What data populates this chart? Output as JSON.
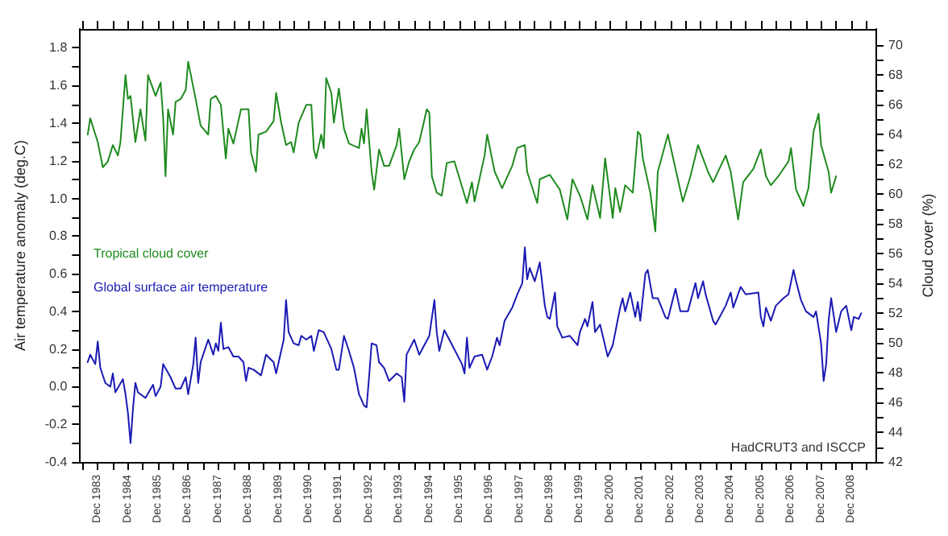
{
  "chart_data": {
    "type": "line",
    "ylabel": "Air temperature anomaly (deg.C)",
    "y2label": "Cloud cover (%)",
    "annotations": [
      "HadCRUT3 and ISCCP"
    ],
    "legend": "left",
    "marker": "none",
    "xlim": [
      "1983-05",
      "2009-09-20"
    ],
    "xticks": [
      {
        "value": "1983-06",
        "label": null
      },
      {
        "value": "1983-12",
        "label": "Dec 1983"
      },
      {
        "value": "1984-06",
        "label": null
      },
      {
        "value": "1984-12",
        "label": "Dec 1984"
      },
      {
        "value": "1985-06",
        "label": null
      },
      {
        "value": "1985-12",
        "label": "Dec 1985"
      },
      {
        "value": "1986-06",
        "label": null
      },
      {
        "value": "1986-12",
        "label": "Dec 1986"
      },
      {
        "value": "1987-06",
        "label": null
      },
      {
        "value": "1987-12",
        "label": "Dec 1987"
      },
      {
        "value": "1988-06",
        "label": null
      },
      {
        "value": "1988-12",
        "label": "Dec 1988"
      },
      {
        "value": "1989-06",
        "label": null
      },
      {
        "value": "1989-12",
        "label": "Dec 1989"
      },
      {
        "value": "1990-06",
        "label": null
      },
      {
        "value": "1990-12",
        "label": "Dec 1990"
      },
      {
        "value": "1991-06",
        "label": null
      },
      {
        "value": "1991-12",
        "label": "Dec 1991"
      },
      {
        "value": "1992-06",
        "label": null
      },
      {
        "value": "1992-12",
        "label": "Dec 1992"
      },
      {
        "value": "1993-06",
        "label": null
      },
      {
        "value": "1993-12",
        "label": "Dec 1993"
      },
      {
        "value": "1994-06",
        "label": null
      },
      {
        "value": "1994-12",
        "label": "Dec 1994"
      },
      {
        "value": "1995-06",
        "label": null
      },
      {
        "value": "1995-12",
        "label": "Dec 1995"
      },
      {
        "value": "1996-06",
        "label": null
      },
      {
        "value": "1996-12",
        "label": "Dec 1996"
      },
      {
        "value": "1997-06",
        "label": null
      },
      {
        "value": "1997-12",
        "label": "Dec 1997"
      },
      {
        "value": "1998-06",
        "label": null
      },
      {
        "value": "1998-12",
        "label": "Dec 1998"
      },
      {
        "value": "1999-06",
        "label": null
      },
      {
        "value": "1999-12",
        "label": "Dec 1999"
      },
      {
        "value": "2000-06",
        "label": null
      },
      {
        "value": "2000-12",
        "label": "Dec 2000"
      },
      {
        "value": "2001-06",
        "label": null
      },
      {
        "value": "2001-12",
        "label": "Dec 2001"
      },
      {
        "value": "2002-06",
        "label": null
      },
      {
        "value": "2002-12",
        "label": "Dec 2002"
      },
      {
        "value": "2003-06",
        "label": null
      },
      {
        "value": "2003-12",
        "label": "Dec 2003"
      },
      {
        "value": "2004-06",
        "label": null
      },
      {
        "value": "2004-12",
        "label": "Dec 2004"
      },
      {
        "value": "2005-06",
        "label": null
      },
      {
        "value": "2005-12",
        "label": "Dec 2005"
      },
      {
        "value": "2006-06",
        "label": null
      },
      {
        "value": "2006-12",
        "label": "Dec 2006"
      },
      {
        "value": "2007-06",
        "label": null
      },
      {
        "value": "2007-12",
        "label": "Dec 2007"
      },
      {
        "value": "2008-06",
        "label": null
      },
      {
        "value": "2008-12",
        "label": "Dec 2008"
      },
      {
        "value": "2009-06",
        "label": null
      }
    ],
    "ylim": [
      -0.4,
      1.9
    ],
    "yticks": [
      -0.4,
      {
        "value": -0.3,
        "label": null
      },
      -0.2,
      {
        "value": -0.1,
        "label": null
      },
      {
        "value": 0,
        "label": "0.0"
      },
      {
        "value": 0.1,
        "label": null
      },
      0.2,
      {
        "value": 0.3,
        "label": null
      },
      0.4,
      {
        "value": 0.5,
        "label": null
      },
      0.6,
      {
        "value": 0.7,
        "label": null
      },
      0.8,
      {
        "value": 0.9,
        "label": null
      },
      {
        "value": 1,
        "label": "1.0"
      },
      {
        "value": 1.1,
        "label": null
      },
      1.2,
      {
        "value": 1.3,
        "label": null
      },
      1.4,
      {
        "value": 1.5,
        "label": null
      },
      1.6,
      {
        "value": 1.7,
        "label": null
      },
      1.8
    ],
    "y2lim": [
      42,
      71.1
    ],
    "y2ticks": [
      42,
      {
        "value": 43,
        "label": null
      },
      44,
      {
        "value": 45,
        "label": null
      },
      46,
      {
        "value": 47,
        "label": null
      },
      48,
      {
        "value": 49,
        "label": null
      },
      50,
      {
        "value": 51,
        "label": null
      },
      52,
      {
        "value": 53,
        "label": null
      },
      54,
      {
        "value": 55,
        "label": null
      },
      56,
      {
        "value": 57,
        "label": null
      },
      58,
      {
        "value": 59,
        "label": null
      },
      60,
      {
        "value": 61,
        "label": null
      },
      62,
      {
        "value": 63,
        "label": null
      },
      64,
      {
        "value": 65,
        "label": null
      },
      66,
      {
        "value": 67,
        "label": null
      },
      68,
      {
        "value": 69,
        "label": null
      },
      70
    ],
    "series": [
      {
        "name": "Tropical cloud cover",
        "color": "#1e8a1e",
        "axis": "y2",
        "x": [
          "1983-08",
          "1983-09",
          "1983-12",
          "1984-02",
          "1984-04",
          "1984-06",
          "1984-08",
          "1984-09",
          "1984-11",
          "1984-12",
          "1985-01",
          "1985-03",
          "1985-05",
          "1985-07",
          "1985-08",
          "1985-11",
          "1986-01",
          "1986-02",
          "1986-03",
          "1986-04",
          "1986-06",
          "1986-07",
          "1986-09",
          "1986-11",
          "1986-12",
          "1987-03",
          "1987-05",
          "1987-08",
          "1987-09",
          "1987-11",
          "1988-01",
          "1988-03",
          "1988-04",
          "1988-06",
          "1988-09",
          "1988-12",
          "1989-01",
          "1989-03",
          "1989-04",
          "1989-07",
          "1989-10",
          "1989-11",
          "1990-01",
          "1990-03",
          "1990-05",
          "1990-06",
          "1990-08",
          "1990-11",
          "1991-01",
          "1991-02",
          "1991-03",
          "1991-05",
          "1991-06",
          "1991-07",
          "1991-09",
          "1991-10",
          "1991-12",
          "1992-02",
          "1992-04",
          "1992-08",
          "1992-09",
          "1992-10",
          "1992-11",
          "1993-01",
          "1993-02",
          "1993-04",
          "1993-06",
          "1993-08",
          "1993-11",
          "1993-12",
          "1994-02",
          "1994-04",
          "1994-06",
          "1994-08",
          "1994-11",
          "1994-12",
          "1995-01",
          "1995-03",
          "1995-05",
          "1995-07",
          "1995-10",
          "1996-03",
          "1996-05",
          "1996-06",
          "1996-10",
          "1996-11",
          "1997-02",
          "1997-05",
          "1997-09",
          "1997-11",
          "1998-02",
          "1998-03",
          "1998-07",
          "1998-08",
          "1998-12",
          "1999-04",
          "1999-07",
          "1999-09",
          "1999-12",
          "2000-03",
          "2000-05",
          "2000-08",
          "2000-10",
          "2001-01",
          "2001-02",
          "2001-04",
          "2001-06",
          "2001-09",
          "2001-11",
          "2001-12",
          "2002-01",
          "2002-04",
          "2002-06",
          "2002-07",
          "2002-11",
          "2003-02",
          "2003-05",
          "2003-08",
          "2003-11",
          "2004-03",
          "2004-05",
          "2004-10",
          "2004-12",
          "2005-03",
          "2005-05",
          "2005-09",
          "2005-12",
          "2006-02",
          "2006-04",
          "2006-07",
          "2006-11",
          "2006-12",
          "2007-02",
          "2007-05",
          "2007-07",
          "2007-09",
          "2007-11",
          "2007-12",
          "2008-03",
          "2008-04",
          "2008-06"
        ],
        "values": [
          64.0,
          65.1,
          63.5,
          61.8,
          62.2,
          63.3,
          62.6,
          63.5,
          68.0,
          66.4,
          66.6,
          63.5,
          65.7,
          63.6,
          68.0,
          66.6,
          67.5,
          65.1,
          61.2,
          65.7,
          64.0,
          66.2,
          66.4,
          67.0,
          68.9,
          66.4,
          64.6,
          64.0,
          66.4,
          66.6,
          66.0,
          62.4,
          64.4,
          63.4,
          65.7,
          65.7,
          62.8,
          61.5,
          64.0,
          64.2,
          64.9,
          66.8,
          64.8,
          63.3,
          63.5,
          62.8,
          64.8,
          66.0,
          66.0,
          63.0,
          62.4,
          64.0,
          63.1,
          67.8,
          66.8,
          64.8,
          67.1,
          64.4,
          63.4,
          63.1,
          64.4,
          63.4,
          65.7,
          61.5,
          60.3,
          63.0,
          61.9,
          61.9,
          63.3,
          64.4,
          61.0,
          62.2,
          63.0,
          63.5,
          65.7,
          65.5,
          61.2,
          60.1,
          59.9,
          62.1,
          62.2,
          59.4,
          60.8,
          59.5,
          62.6,
          64.0,
          61.5,
          60.4,
          61.9,
          63.1,
          63.3,
          61.5,
          59.4,
          61.0,
          61.3,
          60.3,
          58.3,
          61.0,
          59.9,
          58.3,
          60.6,
          58.4,
          62.4,
          58.4,
          60.4,
          58.8,
          60.6,
          60.1,
          64.2,
          64.0,
          62.4,
          60.1,
          57.5,
          61.5,
          64.0,
          61.7,
          59.5,
          61.2,
          63.3,
          61.5,
          60.8,
          62.6,
          61.5,
          58.3,
          60.8,
          61.7,
          63.0,
          61.2,
          60.6,
          61.2,
          62.2,
          63.1,
          60.3,
          59.2,
          60.4,
          64.2,
          65.4,
          63.3,
          61.5,
          60.1,
          61.2
        ]
      },
      {
        "name": "Global surface air temperature",
        "color": "#1a1ab4",
        "x": [
          "1983-08",
          "1983-09",
          "1983-11",
          "1983-12",
          "1984-01",
          "1984-03",
          "1984-05",
          "1984-06",
          "1984-07",
          "1984-10",
          "1984-11",
          "1984-12",
          "1985-01",
          "1985-02",
          "1985-03",
          "1985-04",
          "1985-07",
          "1985-10",
          "1985-11",
          "1986-01",
          "1986-02",
          "1986-05",
          "1986-07",
          "1986-09",
          "1986-11",
          "1986-12",
          "1987-02",
          "1987-03",
          "1987-04",
          "1987-05",
          "1987-08",
          "1987-10",
          "1987-11",
          "1987-12",
          "1988-01",
          "1988-02",
          "1988-04",
          "1988-06",
          "1988-08",
          "1988-10",
          "1988-11",
          "1988-12",
          "1989-02",
          "1989-05",
          "1989-07",
          "1989-10",
          "1989-11",
          "1990-01",
          "1990-02",
          "1990-03",
          "1990-04",
          "1990-06",
          "1990-08",
          "1990-09",
          "1990-11",
          "1991-01",
          "1991-02",
          "1991-04",
          "1991-06",
          "1991-09",
          "1991-11",
          "1991-12",
          "1992-02",
          "1992-04",
          "1992-06",
          "1992-08",
          "1992-10",
          "1992-11",
          "1992-12",
          "1993-01",
          "1993-03",
          "1993-04",
          "1993-06",
          "1993-08",
          "1993-11",
          "1994-01",
          "1994-02",
          "1994-03",
          "1994-06",
          "1994-08",
          "1994-10",
          "1994-12",
          "1995-02",
          "1995-03",
          "1995-04",
          "1995-06",
          "1995-08",
          "1996-01",
          "1996-02",
          "1996-03",
          "1996-04",
          "1996-06",
          "1996-09",
          "1996-11",
          "1997-01",
          "1997-03",
          "1997-04",
          "1997-06",
          "1997-09",
          "1997-11",
          "1998-01",
          "1998-02",
          "1998-03",
          "1998-04",
          "1998-06",
          "1998-08",
          "1998-10",
          "1998-11",
          "1998-12",
          "1999-02",
          "1999-03",
          "1999-05",
          "1999-08",
          "1999-11",
          "1999-12",
          "2000-02",
          "2000-03",
          "2000-05",
          "2000-06",
          "2000-08",
          "2000-11",
          "2001-01",
          "2001-04",
          "2001-05",
          "2001-06",
          "2001-08",
          "2001-10",
          "2001-11",
          "2001-12",
          "2002-02",
          "2002-03",
          "2002-05",
          "2002-07",
          "2002-10",
          "2002-11",
          "2003-02",
          "2003-04",
          "2003-07",
          "2003-10",
          "2003-11",
          "2004-01",
          "2004-02",
          "2004-05",
          "2004-06",
          "2004-10",
          "2004-12",
          "2005-01",
          "2005-04",
          "2005-06",
          "2005-11",
          "2005-12",
          "2006-01",
          "2006-02",
          "2006-04",
          "2006-06",
          "2006-09",
          "2006-11",
          "2007-01",
          "2007-02",
          "2007-04",
          "2007-06",
          "2007-09",
          "2007-10",
          "2007-12",
          "2008-01",
          "2008-02",
          "2008-03",
          "2008-04",
          "2008-06",
          "2008-08",
          "2008-10",
          "2008-12",
          "2009-01",
          "2009-03",
          "2009-04"
        ],
        "values": [
          0.13,
          0.17,
          0.12,
          0.24,
          0.1,
          0.02,
          0.0,
          0.07,
          -0.03,
          0.04,
          -0.04,
          -0.14,
          -0.3,
          -0.11,
          0.02,
          -0.03,
          -0.06,
          0.01,
          -0.05,
          0.0,
          0.12,
          0.05,
          -0.01,
          -0.01,
          0.05,
          -0.04,
          0.12,
          0.26,
          0.02,
          0.13,
          0.25,
          0.17,
          0.23,
          0.19,
          0.34,
          0.2,
          0.21,
          0.16,
          0.16,
          0.13,
          0.03,
          0.1,
          0.09,
          0.06,
          0.17,
          0.13,
          0.07,
          0.19,
          0.25,
          0.46,
          0.29,
          0.23,
          0.22,
          0.27,
          0.25,
          0.27,
          0.19,
          0.3,
          0.29,
          0.2,
          0.09,
          0.09,
          0.27,
          0.19,
          0.1,
          -0.04,
          -0.1,
          -0.11,
          0.05,
          0.23,
          0.22,
          0.13,
          0.1,
          0.03,
          0.07,
          0.05,
          -0.08,
          0.17,
          0.25,
          0.17,
          0.22,
          0.27,
          0.46,
          0.29,
          0.19,
          0.3,
          0.25,
          0.12,
          0.07,
          0.26,
          0.1,
          0.16,
          0.17,
          0.09,
          0.16,
          0.26,
          0.22,
          0.35,
          0.42,
          0.49,
          0.55,
          0.74,
          0.57,
          0.63,
          0.56,
          0.66,
          0.43,
          0.37,
          0.36,
          0.5,
          0.32,
          0.26,
          0.27,
          0.22,
          0.29,
          0.36,
          0.32,
          0.45,
          0.29,
          0.33,
          0.16,
          0.22,
          0.42,
          0.47,
          0.4,
          0.5,
          0.37,
          0.45,
          0.35,
          0.6,
          0.62,
          0.47,
          0.47,
          0.37,
          0.36,
          0.52,
          0.4,
          0.4,
          0.55,
          0.47,
          0.56,
          0.49,
          0.35,
          0.33,
          0.43,
          0.5,
          0.42,
          0.53,
          0.49,
          0.5,
          0.37,
          0.32,
          0.42,
          0.35,
          0.43,
          0.47,
          0.49,
          0.62,
          0.56,
          0.46,
          0.4,
          0.37,
          0.4,
          0.23,
          0.03,
          0.12,
          0.35,
          0.47,
          0.29,
          0.4,
          0.43,
          0.3,
          0.37,
          0.36,
          0.39
        ]
      }
    ]
  }
}
